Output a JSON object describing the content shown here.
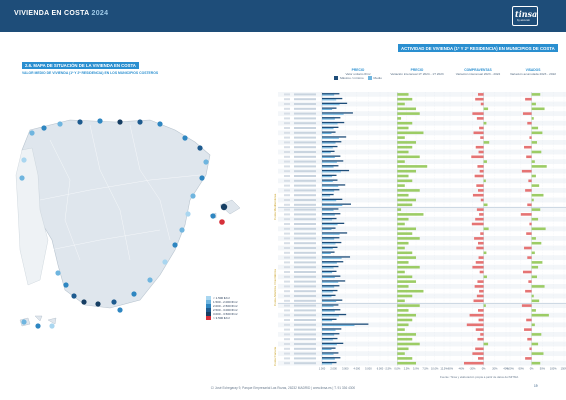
{
  "header": {
    "title": "VIVIENDA EN COSTA",
    "year": "2024"
  },
  "logo": {
    "main": "tinsa",
    "sub": "by accumin"
  },
  "section": {
    "title": "2.6. MAPA DE SITUACIÓN DE LA VIVIENDA EN COSTA",
    "subtitle": "VALOR MEDIO DE VIVIENDA (1ª Y 2ª RESIDENCIA) EN LOS MUNICIPIOS COSTEROS"
  },
  "right_section": {
    "title": "ACTIVIDAD DE VIVIENDA (1ª Y 2ª RESIDENCIA) EN MUNICIPIOS DE COSTA"
  },
  "legend": {
    "items": [
      {
        "label": "< 1.500 €/m²",
        "color": "#a9d6f0"
      },
      {
        "label": "1.500 - 2.000 €/m²",
        "color": "#6fb5df"
      },
      {
        "label": "2.000 - 2.500 €/m²",
        "color": "#2e86c1"
      },
      {
        "label": "2.500 - 3.000 €/m²",
        "color": "#1e5b8f"
      },
      {
        "label": "3.000 - 3.500 €/m²",
        "color": "#163e63"
      },
      {
        "label": "> 3.500 €/m²",
        "color": "#d6303a"
      }
    ]
  },
  "column_headers": [
    {
      "title": "PRECIO",
      "sub": "Valor unitario €/m²"
    },
    {
      "title": "PRECIO",
      "sub": "Variación interanual 1T 2024 - 1T 2023"
    },
    {
      "title": "COMPRAVENTAS",
      "sub": "Variación interanual 2023 - 2022"
    },
    {
      "title": "VISADOS",
      "sub": "Variación acumulada 2023 - 2022"
    }
  ],
  "price_legend": {
    "max": "Máximo / mínimo",
    "mid": "Medio"
  },
  "groups": [
    "Costa Mediterránea",
    "Costa Atlántica / Cantábrica",
    "Costa Canaria"
  ],
  "chart_data": [
    {
      "type": "bar",
      "title": "Valor unitario €/m²",
      "axis_ticks": [
        "1.000",
        "2.000",
        "3.000",
        "4.000",
        "5.000",
        "6.000"
      ],
      "values": [
        1800,
        2100,
        2600,
        1500,
        3200,
        1900,
        2300,
        1700,
        1400,
        2500,
        2000,
        1600,
        1300,
        1900,
        2200,
        1700,
        2800,
        1500,
        1600,
        2400,
        1800,
        1200,
        2100,
        3000,
        1700,
        1900,
        1500,
        2300,
        1400,
        2600,
        1800,
        2000,
        1600,
        1300,
        2900,
        2200,
        1700,
        1500,
        1900,
        2400,
        1800,
        1600,
        1400,
        2100,
        1700,
        1900,
        2500,
        1500,
        4800,
        2000,
        1800,
        1600,
        2200,
        1400,
        1700,
        1900,
        1500
      ]
    },
    {
      "type": "bar",
      "title": "Variación interanual precio",
      "axis_ticks": [
        "-2,5%",
        "0,0%",
        "2,5%",
        "5,0%",
        "7,5%",
        "10,0%",
        "12,5%"
      ],
      "values": [
        3,
        4,
        2,
        5,
        6,
        1,
        4,
        3,
        7,
        2,
        5,
        4,
        3,
        6,
        2,
        8,
        5,
        3,
        4,
        2,
        6,
        3,
        5,
        4,
        1,
        7,
        3,
        2,
        5,
        4,
        6,
        3,
        2,
        4,
        5,
        3,
        6,
        2,
        4,
        5,
        3,
        7,
        4,
        2,
        6,
        3,
        5,
        4,
        3,
        2,
        5,
        4,
        6,
        3,
        2,
        4,
        5
      ]
    },
    {
      "type": "bar",
      "title": "Variación interanual compraventas",
      "axis_ticks": [
        "-60%",
        "-40%",
        "-20%",
        "0%",
        "20%",
        "40%"
      ],
      "values": [
        -10,
        -15,
        -5,
        8,
        -20,
        -12,
        5,
        -8,
        -18,
        -6,
        10,
        -14,
        -9,
        -22,
        6,
        -11,
        -7,
        -16,
        4,
        -13,
        -10,
        -19,
        -5,
        7,
        -12,
        -8,
        -15,
        -21,
        9,
        -6,
        -17,
        -10,
        -13,
        5,
        -9,
        -14,
        -20,
        -7,
        6,
        -11,
        -16,
        -8,
        -12,
        -18,
        4,
        -10,
        -25,
        -9,
        -30,
        -14,
        -6,
        -11,
        8,
        -15,
        -20,
        -10,
        -35
      ]
    },
    {
      "type": "bar",
      "title": "Variación acumulada visados",
      "axis_ticks": [
        "-100%",
        "-50%",
        "0%",
        "50%",
        "100%",
        "150%"
      ],
      "values": [
        40,
        -30,
        20,
        60,
        -40,
        10,
        -20,
        30,
        50,
        -10,
        25,
        -35,
        45,
        -25,
        15,
        70,
        -45,
        20,
        -15,
        35,
        -30,
        55,
        10,
        -20,
        40,
        -50,
        30,
        -10,
        65,
        -25,
        20,
        45,
        -35,
        15,
        -20,
        50,
        30,
        -40,
        25,
        -15,
        60,
        -30,
        10,
        35,
        -45,
        20,
        80,
        -25,
        15,
        -35,
        45,
        -20,
        30,
        -10,
        55,
        -30,
        40
      ]
    }
  ],
  "note": "Fuente: Tinsa y elaboración propia a partir de datos del MITMA",
  "footer": "C/ José Echegaray 9, Parque Empresarial Las Rozas, 28232 MADRID  |  www.tinsa.es  |  T. 91 336 4300",
  "page_number": "19"
}
